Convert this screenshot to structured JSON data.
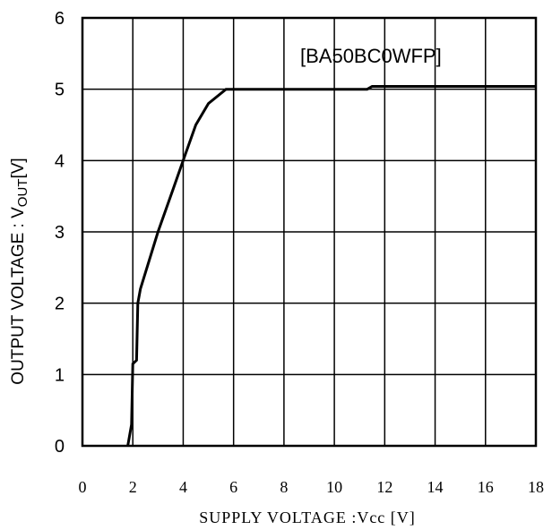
{
  "chart_data": {
    "type": "line",
    "xlabel": "SUPPLY VOLTAGE :Vcc [V]",
    "ylabel_main": "OUTPUT VOLTAGE : V",
    "ylabel_sub": "OUT",
    "ylabel_unit": "[V]",
    "annotation": "[BA50BC0WFP]",
    "xlim": [
      0,
      18
    ],
    "ylim": [
      0,
      6
    ],
    "grid": true,
    "x_ticks": [
      "0",
      "2",
      "4",
      "6",
      "8",
      "10",
      "12",
      "14",
      "16",
      "18"
    ],
    "y_ticks": [
      "0",
      "1",
      "2",
      "3",
      "4",
      "5",
      "6"
    ],
    "series": [
      {
        "x": [
          1.8,
          1.95,
          2.0,
          2.15,
          2.2,
          2.3,
          3.0,
          3.6,
          4.0,
          4.5,
          5.0,
          5.7,
          6.0,
          11.3,
          11.5,
          18.0
        ],
        "y": [
          0.0,
          0.3,
          1.15,
          1.2,
          2.0,
          2.2,
          3.0,
          3.6,
          4.0,
          4.5,
          4.8,
          5.0,
          5.0,
          5.0,
          5.04,
          5.04
        ]
      }
    ]
  }
}
